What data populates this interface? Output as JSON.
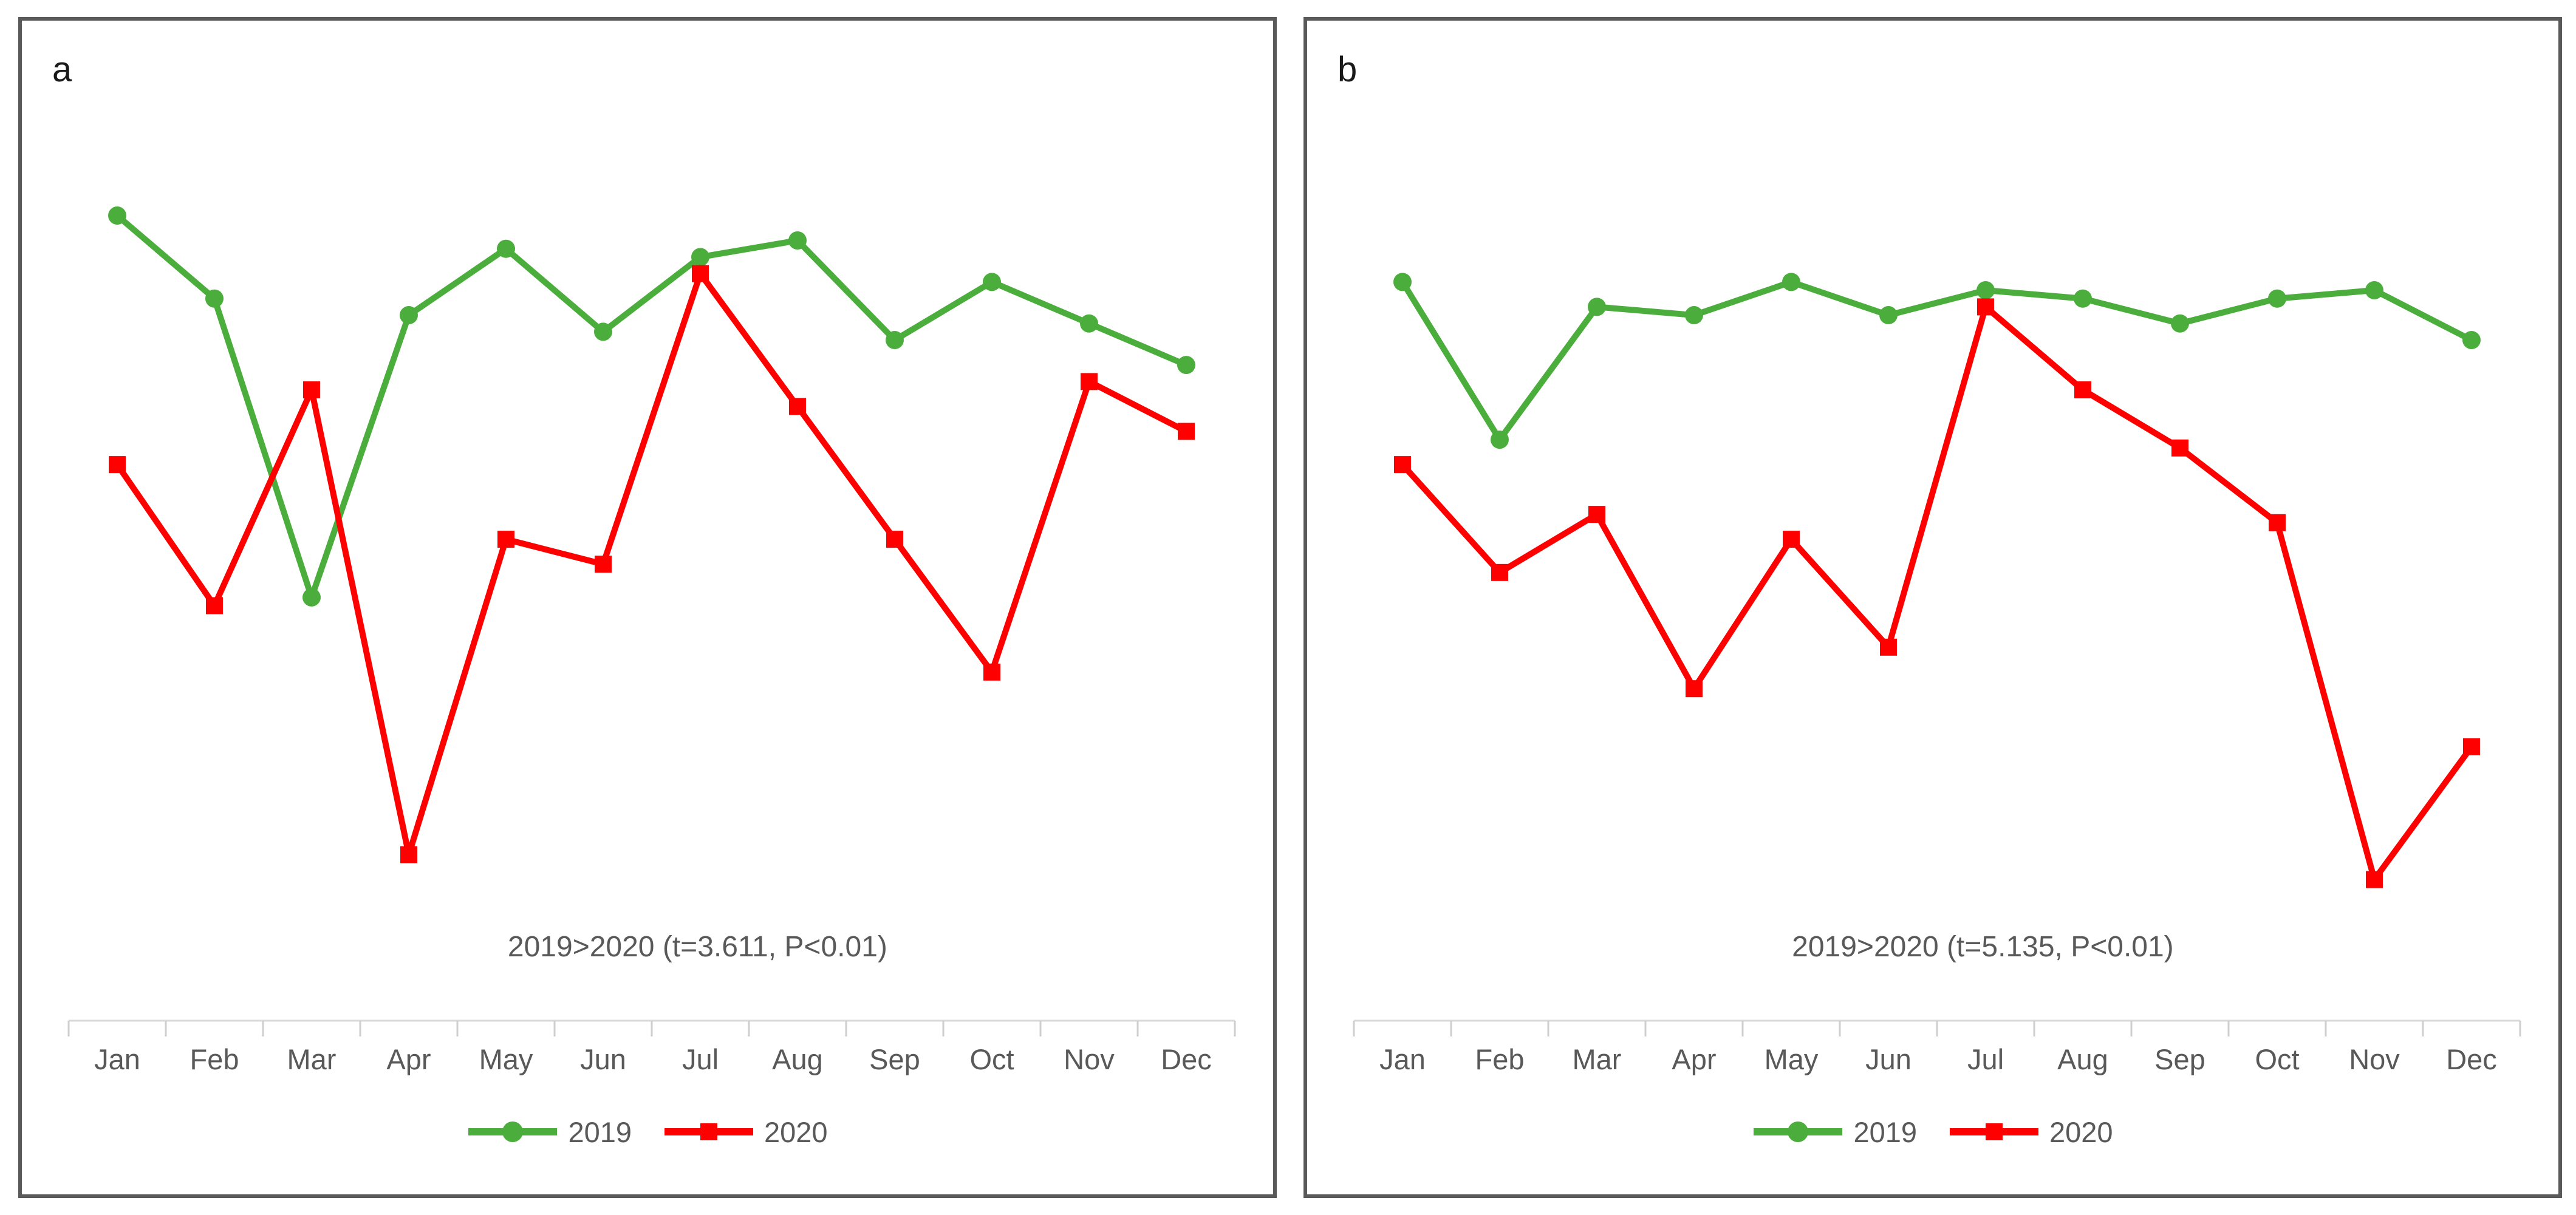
{
  "months": [
    "Jan",
    "Feb",
    "Mar",
    "Apr",
    "May",
    "Jun",
    "Jul",
    "Aug",
    "Sep",
    "Oct",
    "Nov",
    "Dec"
  ],
  "legend": {
    "series": [
      {
        "label": "2019"
      },
      {
        "label": "2020"
      }
    ]
  },
  "colors": {
    "series_2019": "#4BAE3C",
    "series_2020": "#FF0000",
    "axis_line": "#D9D9D9",
    "tick": "#CFCFCF",
    "text": "#595959",
    "panel_border": "#5A5A5A",
    "panel_label": "#1A1A1A",
    "background": "#FFFFFF"
  },
  "panels": [
    {
      "label": "a",
      "annotation": "2019>2020 (t=3.611, P<0.01)"
    },
    {
      "label": "b",
      "annotation": "2019>2020 (t=5.135, P<0.01)"
    }
  ],
  "chart_data": [
    {
      "type": "line",
      "panel_label": "a",
      "title": "",
      "xlabel": "",
      "ylabel": "",
      "categories": [
        "Jan",
        "Feb",
        "Mar",
        "Apr",
        "May",
        "Jun",
        "Jul",
        "Aug",
        "Sep",
        "Oct",
        "Nov",
        "Dec"
      ],
      "series": [
        {
          "name": "2019",
          "color": "#4BAE3C",
          "marker": "circle",
          "values": [
            97,
            87,
            51,
            85,
            93,
            83,
            92,
            94,
            82,
            89,
            84,
            79
          ]
        },
        {
          "name": "2020",
          "color": "#FF0000",
          "marker": "square",
          "values": [
            67,
            50,
            76,
            20,
            58,
            55,
            90,
            74,
            58,
            42,
            77,
            71
          ]
        }
      ],
      "annotation": "2019>2020 (t=3.611, P<0.01)",
      "ylim": [
        0,
        100
      ],
      "y_units": "relative scale (no y-axis shown in figure)",
      "grid": false,
      "legend_position": "bottom"
    },
    {
      "type": "line",
      "panel_label": "b",
      "title": "",
      "xlabel": "",
      "ylabel": "",
      "categories": [
        "Jan",
        "Feb",
        "Mar",
        "Apr",
        "May",
        "Jun",
        "Jul",
        "Aug",
        "Sep",
        "Oct",
        "Nov",
        "Dec"
      ],
      "series": [
        {
          "name": "2019",
          "color": "#4BAE3C",
          "marker": "circle",
          "values": [
            89,
            70,
            86,
            85,
            89,
            85,
            88,
            87,
            84,
            87,
            88,
            82
          ]
        },
        {
          "name": "2020",
          "color": "#FF0000",
          "marker": "square",
          "values": [
            67,
            54,
            61,
            40,
            58,
            45,
            86,
            76,
            69,
            60,
            17,
            33
          ]
        }
      ],
      "annotation": "2019>2020 (t=5.135, P<0.01)",
      "ylim": [
        0,
        100
      ],
      "y_units": "relative scale (no y-axis shown in figure)",
      "grid": false,
      "legend_position": "bottom"
    }
  ]
}
